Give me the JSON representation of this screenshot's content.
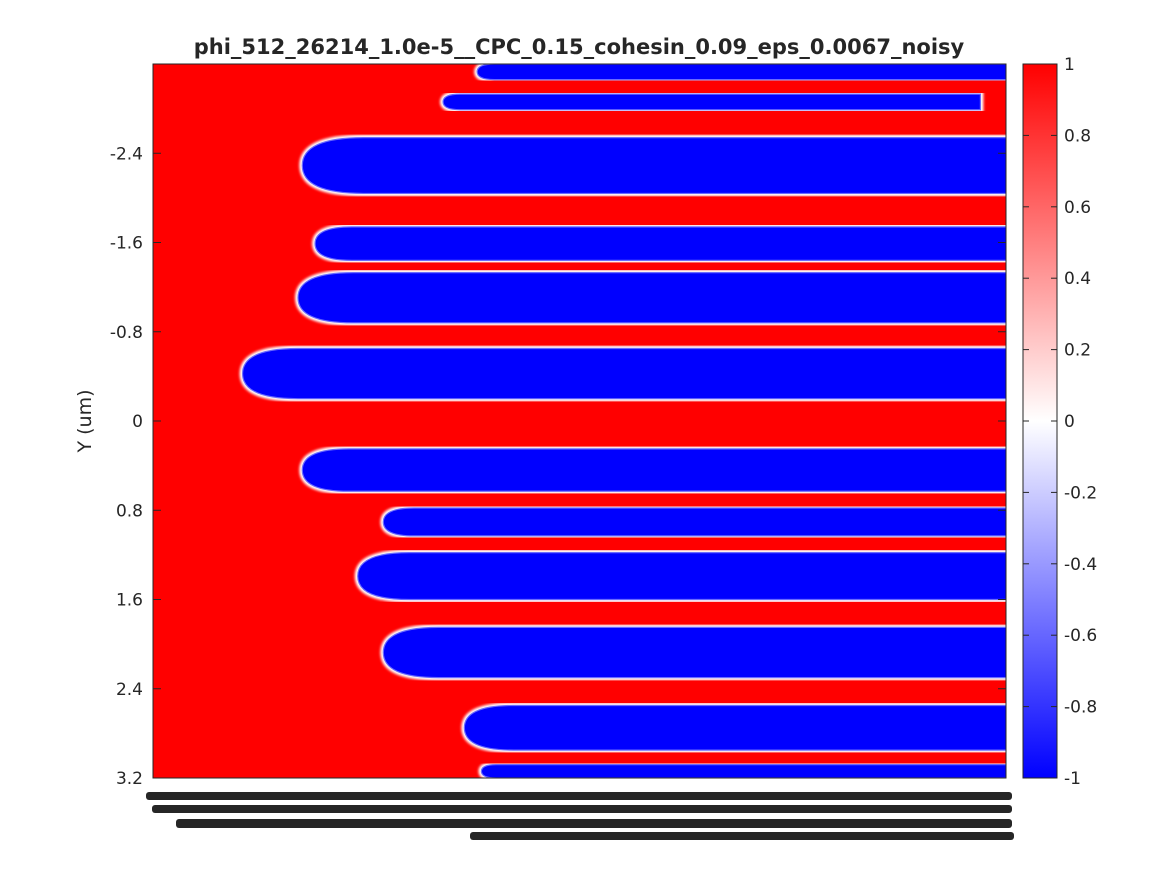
{
  "chart_data": {
    "type": "heatmap",
    "title": "phi_512_26214_1.0e-5__CPC_0.15_cohesin_0.09_eps_0.0067_noisy",
    "ylabel": "Y (um)",
    "xlabel": "",
    "y_ticks": [
      "-2.4",
      "-1.6",
      "-0.8",
      "0",
      "0.8",
      "1.6",
      "2.4",
      "3.2"
    ],
    "y_tick_values": [
      -2.4,
      -1.6,
      -0.8,
      0,
      0.8,
      1.6,
      2.4,
      3.2
    ],
    "ylim": [
      -3.2,
      3.2
    ],
    "y_reversed": true,
    "x_tick_labels_note": "x tick labels rendered as illegible overlapping text",
    "colorbar": {
      "min": -1,
      "max": 1,
      "ticks": [
        "1",
        "0.8",
        "0.6",
        "0.4",
        "0.2",
        "0",
        "-0.2",
        "-0.4",
        "-0.6",
        "-0.8",
        "-1"
      ],
      "tick_values": [
        1,
        0.8,
        0.6,
        0.4,
        0.2,
        0,
        -0.2,
        -0.4,
        -0.6,
        -0.8,
        -1
      ],
      "colormap": "blue-white-red",
      "low_color": "#0000ff",
      "mid_color": "#ffffff",
      "high_color": "#ff0000"
    },
    "field": {
      "value_range": [
        -1,
        1
      ],
      "x_range": [
        0,
        1
      ],
      "background_value": 1,
      "stripe_value": -1,
      "blue_stripes": [
        {
          "y_top": -3.2,
          "y_bottom": -3.06,
          "x_start": 0.38
        },
        {
          "y_top": -2.93,
          "y_bottom": -2.79,
          "x_start": 0.34,
          "x_end": 0.97
        },
        {
          "y_top": -2.54,
          "y_bottom": -2.04,
          "x_start": 0.175
        },
        {
          "y_top": -1.74,
          "y_bottom": -1.44,
          "x_start": 0.19
        },
        {
          "y_top": -1.33,
          "y_bottom": -0.88,
          "x_start": 0.17
        },
        {
          "y_top": -0.65,
          "y_bottom": -0.2,
          "x_start": 0.105
        },
        {
          "y_top": 0.25,
          "y_bottom": 0.63,
          "x_start": 0.175
        },
        {
          "y_top": 0.78,
          "y_bottom": 1.03,
          "x_start": 0.27
        },
        {
          "y_top": 1.18,
          "y_bottom": 1.6,
          "x_start": 0.24
        },
        {
          "y_top": 1.85,
          "y_bottom": 2.3,
          "x_start": 0.27
        },
        {
          "y_top": 2.55,
          "y_bottom": 2.95,
          "x_start": 0.365
        },
        {
          "y_top": 3.08,
          "y_bottom": 3.2,
          "x_start": 0.385
        }
      ]
    }
  }
}
